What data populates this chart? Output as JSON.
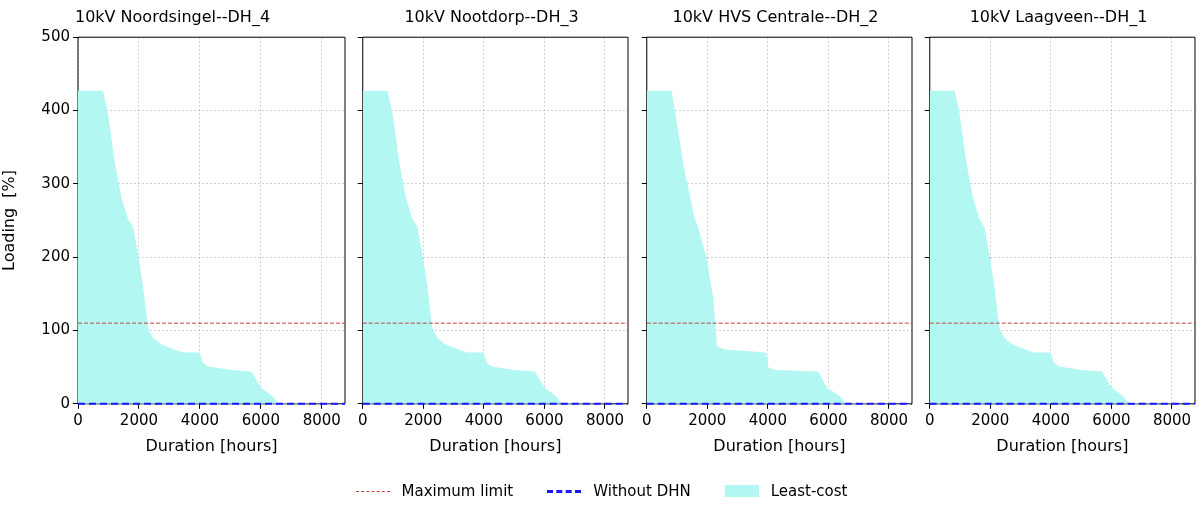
{
  "chart_data": [
    {
      "type": "area",
      "title": "10kV Noordsingel--DH_4",
      "xlabel": "Duration [hours]",
      "ylabel": "Loading  [%]",
      "xlim": [
        0,
        8760
      ],
      "xticks": [
        0,
        2000,
        4000,
        6000,
        8000
      ],
      "ylim": [
        0,
        500
      ],
      "yticks": [
        0,
        100,
        200,
        300,
        400,
        500
      ],
      "grid": true,
      "legend": "bottom",
      "ref_lines": [
        {
          "axis": "y",
          "value": 110,
          "label": "Maximum limit",
          "color": "#c04040",
          "line_style": "dashed"
        }
      ],
      "series": [
        {
          "name": "Without DHN",
          "type": "line",
          "line_style": "dashed",
          "color": "#1a1aff",
          "x": [
            0,
            8760
          ],
          "values": [
            0,
            0
          ]
        },
        {
          "name": "Least-cost",
          "type": "area",
          "color": "#b3f7f2",
          "x": [
            0,
            820,
            984,
            1202,
            1421,
            1639,
            1803,
            1967,
            2131,
            2295,
            2459,
            2732,
            3169,
            3443,
            3989,
            4098,
            4262,
            5027,
            5683,
            6011,
            6393,
            6557,
            8760
          ],
          "values": [
            427,
            427,
            396,
            330,
            282,
            252,
            241,
            205,
            161,
            104,
            90,
            81,
            74,
            70,
            70,
            56,
            51,
            46,
            44,
            22,
            10,
            1,
            0
          ]
        }
      ]
    },
    {
      "type": "area",
      "title": "10kV Nootdorp--DH_3",
      "xlabel": "Duration [hours]",
      "xlim": [
        0,
        8760
      ],
      "xticks": [
        0,
        2000,
        4000,
        6000,
        8000
      ],
      "ylim": [
        0,
        500
      ],
      "yticks": [
        0,
        100,
        200,
        300,
        400,
        500
      ],
      "grid": true,
      "tick_labels": "x",
      "ref_lines": [
        {
          "axis": "y",
          "value": 110,
          "color": "#c04040",
          "line_style": "dashed"
        }
      ],
      "series": [
        {
          "type": "line",
          "line_style": "dashed",
          "color": "#1a1aff",
          "x": [
            0,
            8760
          ],
          "values": [
            0,
            0
          ]
        },
        {
          "type": "area",
          "color": "#b3f7f2",
          "x": [
            0,
            820,
            984,
            1202,
            1421,
            1639,
            1803,
            1967,
            2131,
            2295,
            2459,
            2732,
            3169,
            3443,
            3989,
            4098,
            4262,
            5027,
            5683,
            6011,
            6393,
            6557,
            8760
          ],
          "values": [
            427,
            427,
            396,
            330,
            282,
            252,
            241,
            205,
            161,
            104,
            90,
            81,
            74,
            70,
            70,
            56,
            51,
            46,
            44,
            22,
            10,
            1,
            0
          ]
        }
      ]
    },
    {
      "type": "area",
      "title": "10kV HVS Centrale--DH_2",
      "xlabel": "Duration [hours]",
      "xlim": [
        0,
        8760
      ],
      "xticks": [
        0,
        2000,
        4000,
        6000,
        8000
      ],
      "ylim": [
        0,
        500
      ],
      "yticks": [
        0,
        100,
        200,
        300,
        400,
        500
      ],
      "grid": true,
      "tick_labels": "x",
      "ref_lines": [
        {
          "axis": "y",
          "value": 110,
          "color": "#c04040",
          "line_style": "dashed"
        }
      ],
      "series": [
        {
          "type": "line",
          "line_style": "dashed",
          "color": "#1a1aff",
          "x": [
            0,
            8760
          ],
          "values": [
            0,
            0
          ]
        },
        {
          "type": "area",
          "color": "#b3f7f2",
          "x": [
            0,
            820,
            984,
            1257,
            1585,
            1694,
            1967,
            2186,
            2317,
            2568,
            3934,
            4022,
            4262,
            5661,
            5956,
            6393,
            6557,
            8760
          ],
          "values": [
            427,
            427,
            385,
            316,
            252,
            241,
            200,
            147,
            79,
            74,
            70,
            49,
            46,
            44,
            22,
            10,
            1,
            0
          ]
        }
      ]
    },
    {
      "type": "area",
      "title": "10kV Laagveen--DH_1",
      "xlabel": "Duration [hours]",
      "xlim": [
        0,
        8760
      ],
      "xticks": [
        0,
        2000,
        4000,
        6000,
        8000
      ],
      "ylim": [
        0,
        500
      ],
      "yticks": [
        0,
        100,
        200,
        300,
        400,
        500
      ],
      "grid": true,
      "tick_labels": "x",
      "ref_lines": [
        {
          "axis": "y",
          "value": 110,
          "color": "#c04040",
          "line_style": "dashed"
        }
      ],
      "series": [
        {
          "type": "line",
          "line_style": "dashed",
          "color": "#1a1aff",
          "x": [
            0,
            8760
          ],
          "values": [
            0,
            0
          ]
        },
        {
          "type": "area",
          "color": "#b3f7f2",
          "x": [
            0,
            820,
            984,
            1202,
            1421,
            1639,
            1803,
            1967,
            2131,
            2295,
            2459,
            2732,
            3169,
            3443,
            3989,
            4098,
            4262,
            5027,
            5683,
            6011,
            6393,
            6557,
            8760
          ],
          "values": [
            427,
            427,
            396,
            330,
            282,
            252,
            241,
            205,
            161,
            104,
            90,
            81,
            74,
            70,
            70,
            56,
            51,
            46,
            44,
            22,
            10,
            1,
            0
          ]
        }
      ]
    }
  ]
}
